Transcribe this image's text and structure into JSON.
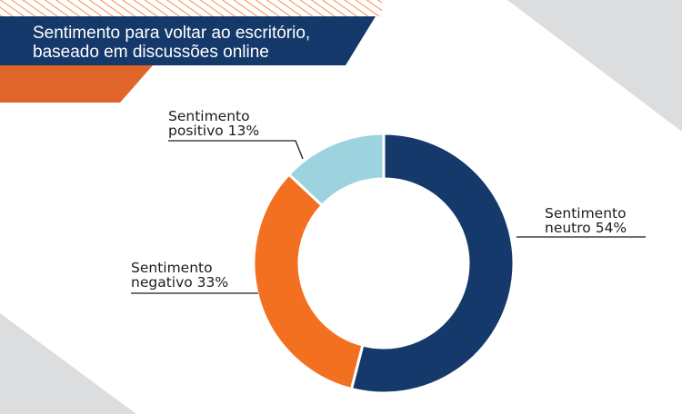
{
  "header": {
    "title_line1": "Sentimento para voltar ao escritório,",
    "title_line2": "baseado em discussões online"
  },
  "colors": {
    "navy": "#15396A",
    "orange": "#F37021",
    "orange_dark": "#E0652A",
    "light_blue": "#9DD3DF",
    "gray": "#DCDDDE",
    "text": "#1C1C1C"
  },
  "chart_data": {
    "type": "pie",
    "donut": true,
    "title": "Sentimento para voltar ao escritório, baseado em discussões online",
    "slices": [
      {
        "name": "Sentimento neutro",
        "value": 54,
        "color": "#15396A",
        "label_line1": "Sentimento",
        "label_line2": "neutro 54%"
      },
      {
        "name": "Sentimento negativo",
        "value": 33,
        "color": "#F37021",
        "label_line1": "Sentimento",
        "label_line2": "negativo 33%"
      },
      {
        "name": "Sentimento positivo",
        "value": 13,
        "color": "#9DD3DF",
        "label_line1": "Sentimento",
        "label_line2": "positivo 13%"
      }
    ]
  }
}
